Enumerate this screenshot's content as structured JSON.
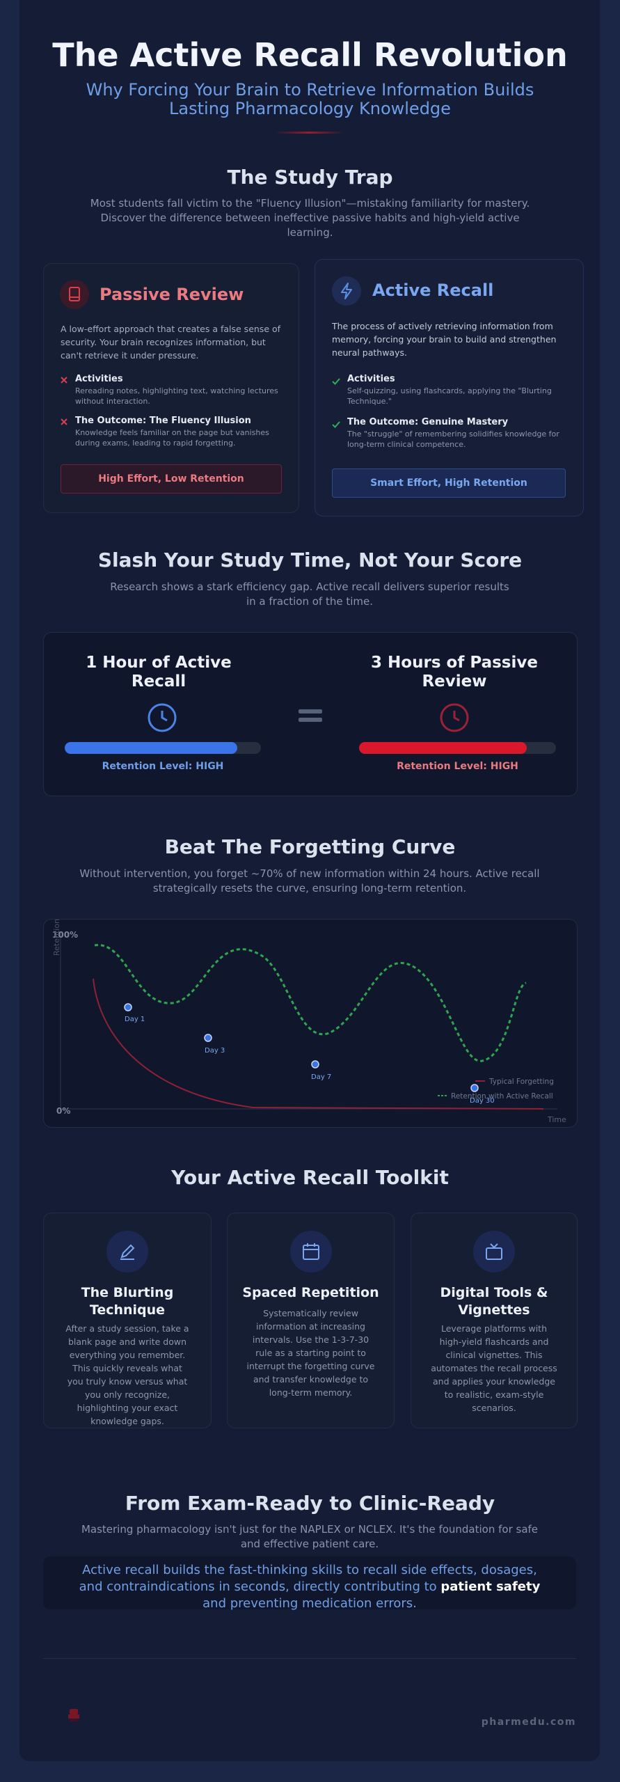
{
  "header": {
    "title": "The Active Recall Revolution",
    "subtitle": "Why Forcing Your Brain to Retrieve Information Builds Lasting Pharmacology Knowledge"
  },
  "trap": {
    "title": "The Study Trap",
    "description": "Most students fall victim to the \"Fluency Illusion\"—mistaking familiarity for mastery. Discover the difference between ineffective passive habits and high-yield active learning.",
    "passive": {
      "title": "Passive Review",
      "description": "A low-effort approach that creates a false sense of security. Your brain recognizes information, but can't retrieve it under pressure.",
      "items": [
        {
          "title": "Activities",
          "text": "Rereading notes, highlighting text, watching lectures without interaction."
        },
        {
          "title": "The Outcome: The Fluency Illusion",
          "text": "Knowledge feels familiar on the page but vanishes during exams, leading to rapid forgetting."
        }
      ],
      "badge": "High Effort, Low Retention"
    },
    "active": {
      "title": "Active Recall",
      "description": "The process of actively retrieving information from memory, forcing your brain to build and strengthen neural pathways.",
      "items": [
        {
          "title": "Activities",
          "text": "Self-quizzing, using flashcards, applying the \"Blurting Technique.\""
        },
        {
          "title": "The Outcome: Genuine Mastery",
          "text": "The \"struggle\" of remembering solidifies knowledge for long-term clinical competence."
        }
      ],
      "badge": "Smart Effort, High Retention"
    }
  },
  "time": {
    "title": "Slash Your Study Time, Not Your Score",
    "description": "Research shows a stark efficiency gap. Active recall delivers superior results in a fraction of the time.",
    "left": {
      "title": "1 Hour of Active Recall",
      "label": "Retention Level: HIGH"
    },
    "right": {
      "title": "3 Hours of Passive Review",
      "label": "Retention Level: HIGH"
    }
  },
  "curve": {
    "title": "Beat The Forgetting Curve",
    "description": "Without intervention, you forget ~70% of new information within 24 hours. Active recall strategically resets the curve, ensuring long-term retention.",
    "y_top": "100%",
    "y_bottom": "0%",
    "y_label": "Retention",
    "x_label": "Time",
    "days": [
      "Day 1",
      "Day 3",
      "Day 7",
      "Day 30"
    ],
    "legend": [
      "Typical Forgetting",
      "Retention with Active Recall"
    ]
  },
  "toolkit": {
    "title": "Your Active Recall Toolkit",
    "cards": [
      {
        "title": "The Blurting Technique",
        "text": "After a study session, take a blank page and write down everything you remember. This quickly reveals what you truly know versus what you only recognize, highlighting your exact knowledge gaps."
      },
      {
        "title": "Spaced Repetition",
        "text": "Systematically review information at increasing intervals. Use the 1-3-7-30 rule as a starting point to interrupt the forgetting curve and transfer knowledge to long-term memory."
      },
      {
        "title": "Digital Tools & Vignettes",
        "text": "Leverage platforms with high-yield flashcards and clinical vignettes. This automates the recall process and applies your knowledge to realistic, exam-style scenarios."
      }
    ]
  },
  "clinic": {
    "title": "From Exam-Ready to Clinic-Ready",
    "description": "Mastering pharmacology isn't just for the NAPLEX or NCLEX. It's the foundation for safe and effective patient care.",
    "quote_before": "Active recall builds the fast-thinking skills to recall side effects, dosages, and contraindications in seconds, directly contributing to ",
    "quote_strong": "patient safety",
    "quote_after": " and preventing medication errors."
  },
  "footer": {
    "brand": "pharmedu.com"
  }
}
